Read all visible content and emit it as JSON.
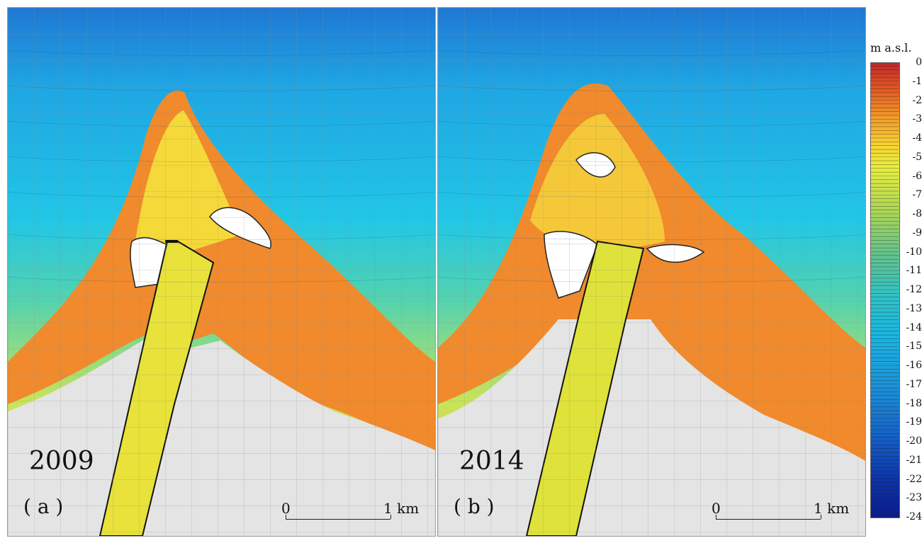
{
  "panels": [
    {
      "year": "2009",
      "label": "( a )",
      "scale_start": "0",
      "scale_end": "1 km"
    },
    {
      "year": "2014",
      "label": "( b )",
      "scale_start": "0",
      "scale_end": "1 km"
    }
  ],
  "legend": {
    "title": "m a.s.l.",
    "ticks": [
      "0",
      "-1",
      "-2",
      "-3",
      "-4",
      "-5",
      "-6",
      "-7",
      "-8",
      "-9",
      "-10",
      "-11",
      "-12",
      "-13",
      "-14",
      "-15",
      "-16",
      "-17",
      "-18",
      "-19",
      "-20",
      "-21",
      "-22",
      "-23",
      "-24"
    ]
  },
  "colors": {
    "deep": "#0a1c8a",
    "offshore": "#19b6e3",
    "mid": "#64c38c",
    "shoal": "#f7d331",
    "shallow": "#e35c22",
    "land": "#e4e4e4"
  }
}
